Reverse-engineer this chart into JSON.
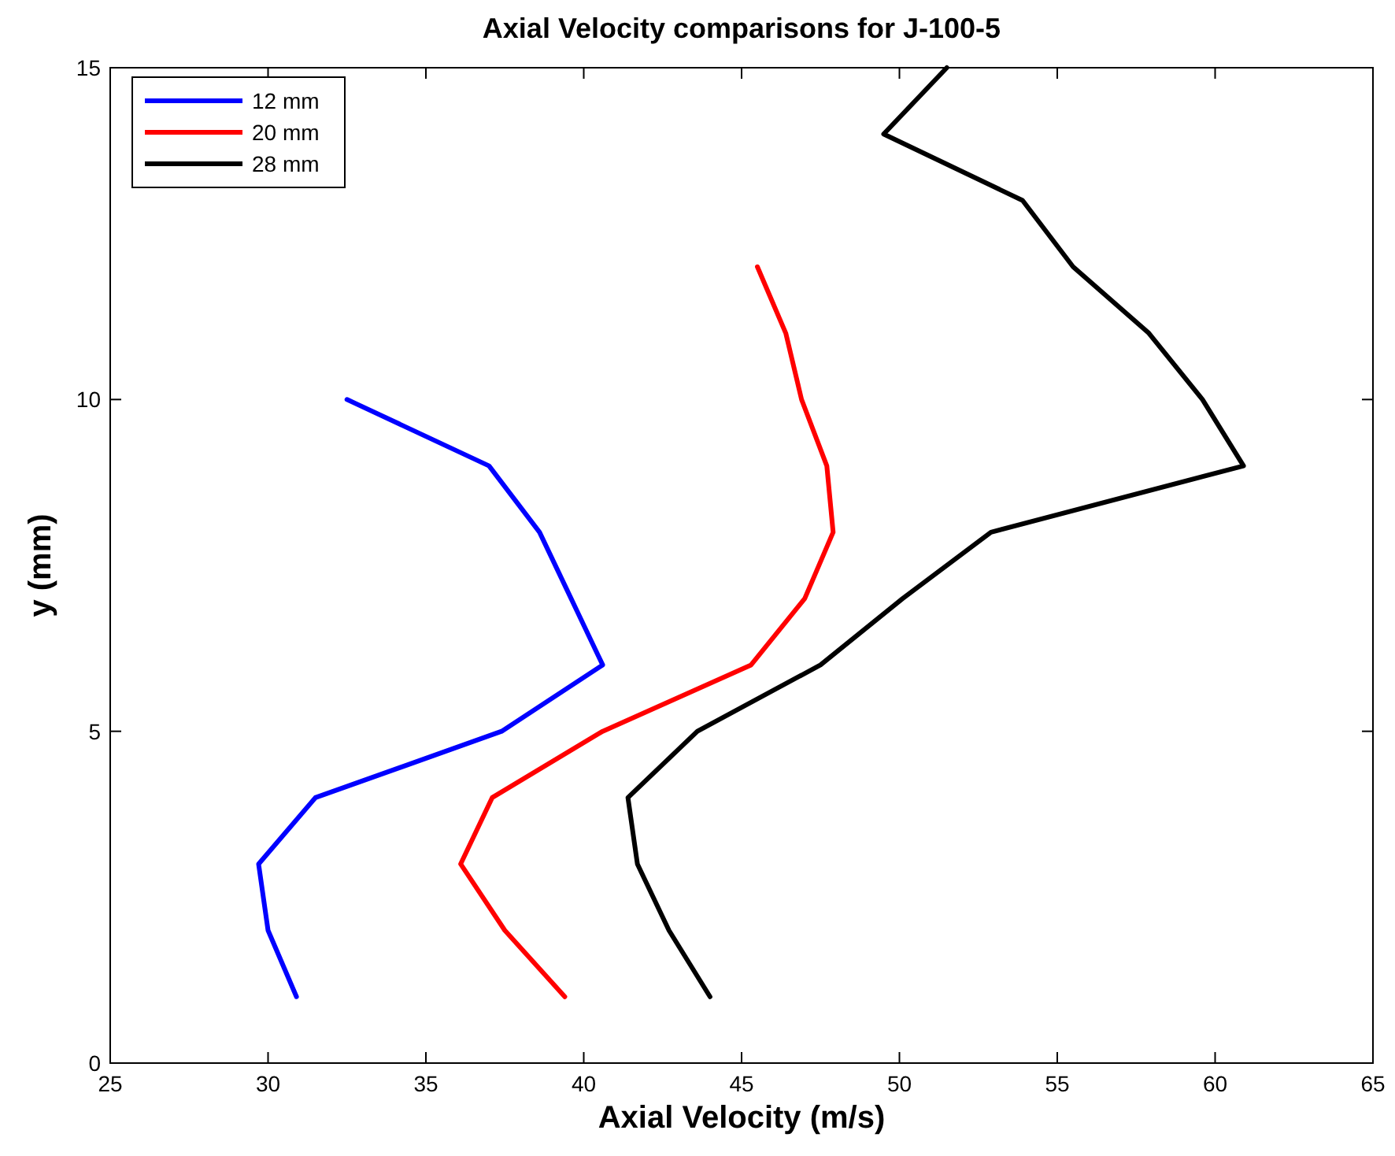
{
  "chart_data": {
    "type": "line",
    "title": "Axial Velocity comparisons for J-100-5",
    "xlabel": "Axial Velocity (m/s)",
    "ylabel": "y (mm)",
    "xlim": [
      25,
      65
    ],
    "xticks": [
      25,
      30,
      35,
      40,
      45,
      50,
      55,
      60,
      65
    ],
    "ylim": [
      0,
      15
    ],
    "yticks": [
      0,
      5,
      10,
      15
    ],
    "grid": false,
    "legend": "top left",
    "line_style": "solid",
    "series": [
      {
        "name": "12 mm",
        "color": "#0000ff",
        "x": [
          30.9,
          30.0,
          29.7,
          31.5,
          37.4,
          40.6,
          39.6,
          38.6,
          37.0,
          32.5
        ],
        "values": [
          1,
          2,
          3,
          4,
          5,
          6,
          7,
          8,
          9,
          10
        ]
      },
      {
        "name": "20 mm",
        "color": "#ff0000",
        "x": [
          39.4,
          37.5,
          36.1,
          37.1,
          40.6,
          45.3,
          47.0,
          47.9,
          47.7,
          46.9,
          46.4,
          45.5
        ],
        "values": [
          1,
          2,
          3,
          4,
          5,
          6,
          7,
          8,
          9,
          10,
          11,
          12
        ]
      },
      {
        "name": "28 mm",
        "color": "#000000",
        "x": [
          44.0,
          42.7,
          41.7,
          41.4,
          43.6,
          47.5,
          50.1,
          52.9,
          60.9,
          59.6,
          57.9,
          55.5,
          53.9,
          49.5,
          51.5
        ],
        "values": [
          1,
          2,
          3,
          4,
          5,
          6,
          7,
          8,
          9,
          10,
          11,
          12,
          13,
          14,
          15
        ]
      }
    ]
  }
}
